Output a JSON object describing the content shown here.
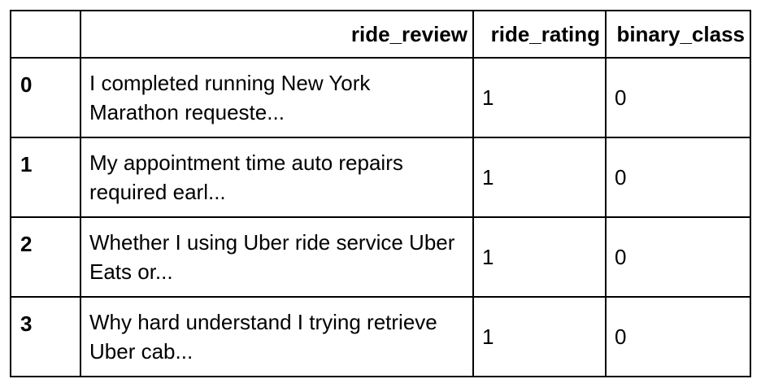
{
  "table": {
    "columns": [
      "",
      "ride_review",
      "ride_rating",
      "binary_class"
    ],
    "rows": [
      {
        "index": "0",
        "ride_review": "I completed running New York Marathon requeste...",
        "ride_rating": "1",
        "binary_class": "0"
      },
      {
        "index": "1",
        "ride_review": "My appointment time auto repairs required earl...",
        "ride_rating": "1",
        "binary_class": "0"
      },
      {
        "index": "2",
        "ride_review": "Whether I using Uber ride service Uber Eats or...",
        "ride_rating": "1",
        "binary_class": "0"
      },
      {
        "index": "3",
        "ride_review": "Why hard understand I trying retrieve Uber cab...",
        "ride_rating": "1",
        "binary_class": "0"
      }
    ]
  }
}
